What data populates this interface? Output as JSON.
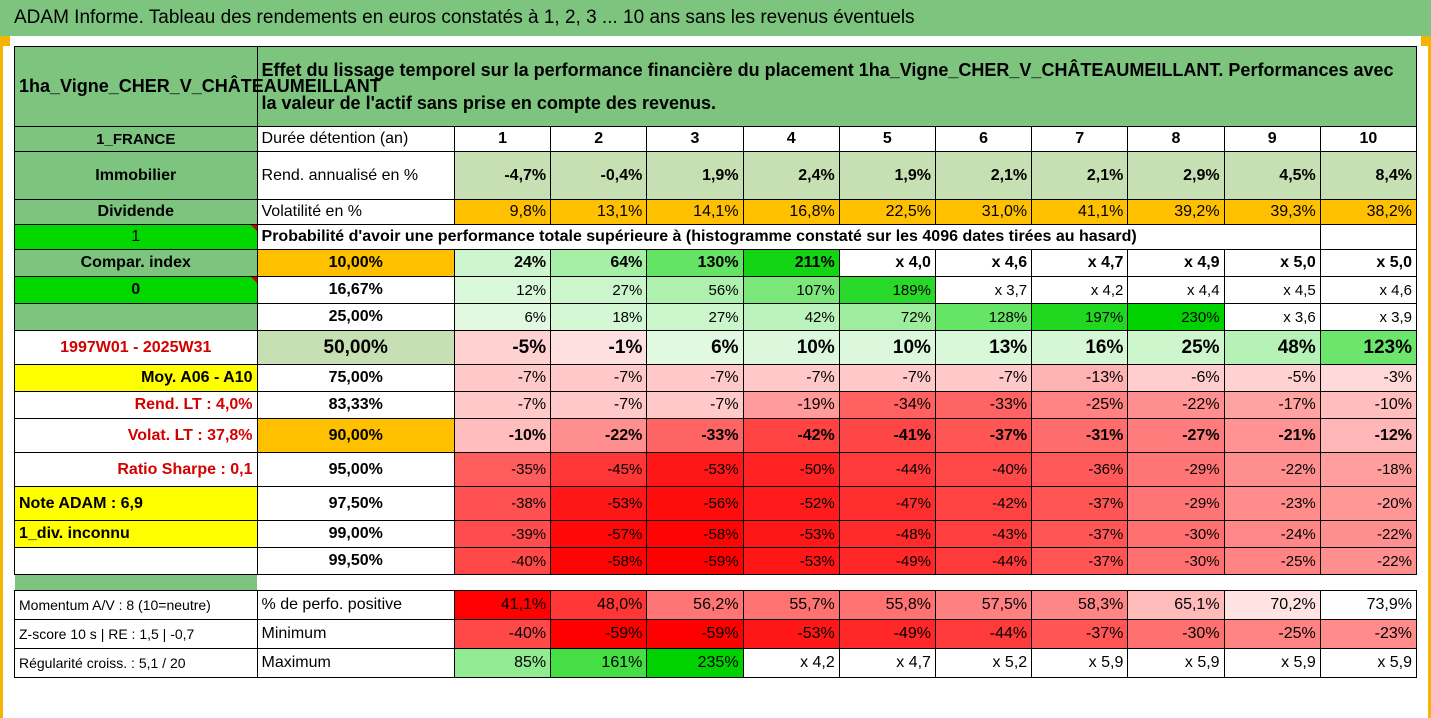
{
  "title": "ADAM Informe. Tableau des rendements en euros constatés à 1, 2, 3 ... 10 ans sans les revenus éventuels",
  "asset_name": "1ha_Vigne_CHER_V_CHÂTEAUMEILLANT",
  "description": "Effet du lissage temporel sur la performance financière du placement 1ha_Vigne_CHER_V_CHÂTEAUMEILLANT. Performances avec la valeur de l'actif sans prise en compte des revenus.",
  "left": {
    "country": "1_FRANCE",
    "category": "Immobilier",
    "dividende": "Dividende",
    "one": "1",
    "compar": "Compar. index",
    "zero": "0",
    "period": "1997W01 - 2025W31",
    "moy": "Moy. A06 - A10",
    "rend_lt": "Rend. LT :   4,0%",
    "volat_lt": "Volat. LT :   37,8%",
    "sharpe": "Ratio Sharpe :   0,1",
    "note": "Note ADAM : 6,9",
    "div": "1_div. inconnu",
    "momentum": "Momentum A/V : 8 (10=neutre)",
    "zscore": "Z-score 10 s  |  RE : 1,5  |  -0,7",
    "regularite": "Régularité croiss. : 5,1 / 20"
  },
  "labels": {
    "duree": "Durée détention (an)",
    "rend": "Rend. annualisé en %",
    "volat": "Volatilité en %",
    "proba": "Probabilité d'avoir une performance totale supérieure à (histogramme constaté sur les 4096 dates tirées au hasard)",
    "positive": "% de perfo. positive",
    "minimum": "Minimum",
    "maximum": "Maximum"
  },
  "years": [
    "1",
    "2",
    "3",
    "4",
    "5",
    "6",
    "7",
    "8",
    "9",
    "10"
  ],
  "rend": [
    "-4,7%",
    "-0,4%",
    "1,9%",
    "2,4%",
    "1,9%",
    "2,1%",
    "2,1%",
    "2,9%",
    "4,5%",
    "8,4%"
  ],
  "volat": [
    "9,8%",
    "13,1%",
    "14,1%",
    "16,8%",
    "22,5%",
    "31,0%",
    "41,1%",
    "39,2%",
    "39,3%",
    "38,2%"
  ],
  "quantiles": [
    {
      "p": "10,00%",
      "v": [
        "24%",
        "64%",
        "130%",
        "211%",
        "x 4,0",
        "x 4,6",
        "x 4,7",
        "x 4,9",
        "x 5,0",
        "x 5,0"
      ]
    },
    {
      "p": "16,67%",
      "v": [
        "12%",
        "27%",
        "56%",
        "107%",
        "189%",
        "x 3,7",
        "x 4,2",
        "x 4,4",
        "x 4,5",
        "x 4,6"
      ]
    },
    {
      "p": "25,00%",
      "v": [
        "6%",
        "18%",
        "27%",
        "42%",
        "72%",
        "128%",
        "197%",
        "230%",
        "x 3,6",
        "x 3,9"
      ]
    },
    {
      "p": "50,00%",
      "v": [
        "-5%",
        "-1%",
        "6%",
        "10%",
        "10%",
        "13%",
        "16%",
        "25%",
        "48%",
        "123%"
      ]
    },
    {
      "p": "75,00%",
      "v": [
        "-7%",
        "-7%",
        "-7%",
        "-7%",
        "-7%",
        "-7%",
        "-13%",
        "-6%",
        "-5%",
        "-3%"
      ]
    },
    {
      "p": "83,33%",
      "v": [
        "-7%",
        "-7%",
        "-7%",
        "-19%",
        "-34%",
        "-33%",
        "-25%",
        "-22%",
        "-17%",
        "-10%"
      ]
    },
    {
      "p": "90,00%",
      "v": [
        "-10%",
        "-22%",
        "-33%",
        "-42%",
        "-41%",
        "-37%",
        "-31%",
        "-27%",
        "-21%",
        "-12%"
      ]
    },
    {
      "p": "95,00%",
      "v": [
        "-35%",
        "-45%",
        "-53%",
        "-50%",
        "-44%",
        "-40%",
        "-36%",
        "-29%",
        "-22%",
        "-18%"
      ]
    },
    {
      "p": "97,50%",
      "v": [
        "-38%",
        "-53%",
        "-56%",
        "-52%",
        "-47%",
        "-42%",
        "-37%",
        "-29%",
        "-23%",
        "-20%"
      ]
    },
    {
      "p": "99,00%",
      "v": [
        "-39%",
        "-57%",
        "-58%",
        "-53%",
        "-48%",
        "-43%",
        "-37%",
        "-30%",
        "-24%",
        "-22%"
      ]
    },
    {
      "p": "99,50%",
      "v": [
        "-40%",
        "-58%",
        "-59%",
        "-53%",
        "-49%",
        "-44%",
        "-37%",
        "-30%",
        "-25%",
        "-22%"
      ]
    }
  ],
  "positive": [
    "41,1%",
    "48,0%",
    "56,2%",
    "55,7%",
    "55,8%",
    "57,5%",
    "58,3%",
    "65,1%",
    "70,2%",
    "73,9%"
  ],
  "minimum": [
    "-40%",
    "-59%",
    "-59%",
    "-53%",
    "-49%",
    "-44%",
    "-37%",
    "-30%",
    "-25%",
    "-23%"
  ],
  "maximum": [
    "85%",
    "161%",
    "235%",
    "x 4,2",
    "x 4,7",
    "x 5,2",
    "x 5,9",
    "x 5,9",
    "x 5,9",
    "x 5,9"
  ],
  "colors": {
    "header_green": "#7dc57f",
    "light_green": "#c6e0b4",
    "orange": "#ffc000",
    "yellow": "#ffff00",
    "bright_green": "#00d800",
    "deep_red": "#ff0000",
    "label_red": "#d40000"
  }
}
